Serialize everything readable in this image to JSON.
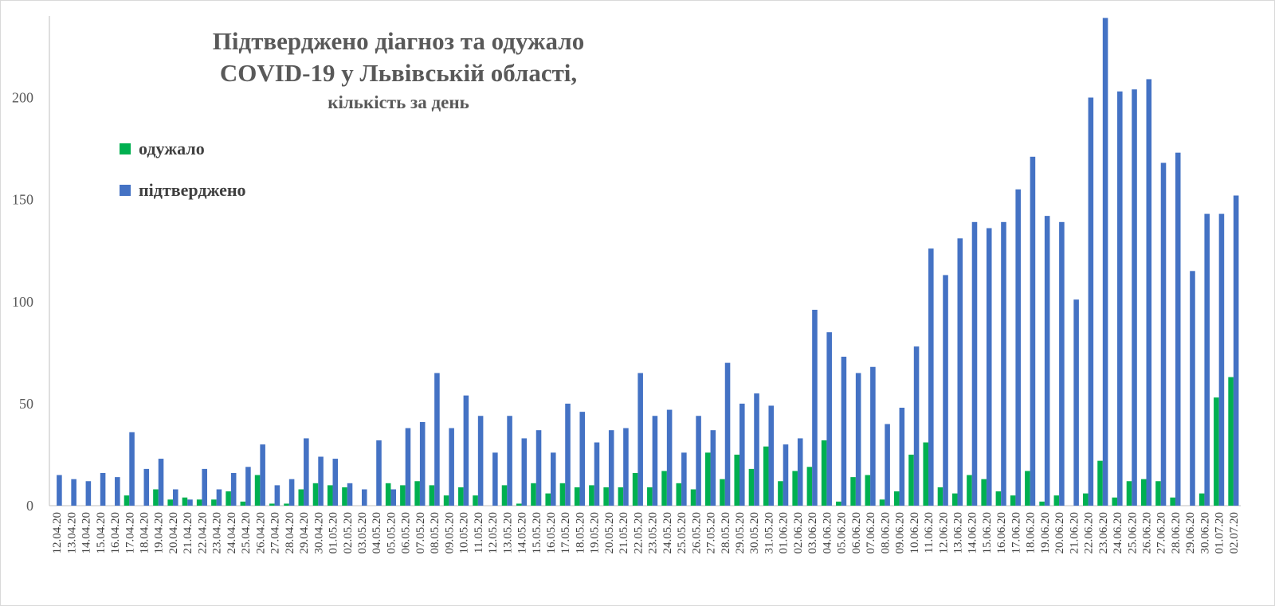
{
  "chart_data": {
    "type": "bar",
    "title_line1": "Підтверджено діагноз та одужало",
    "title_line2": "COVID-19 у Львівській області,",
    "subtitle": "кількість за день",
    "ylim": [
      0,
      240
    ],
    "yticks": [
      0,
      50,
      100,
      150,
      200
    ],
    "legend_position": "top-left",
    "categories": [
      "12.04.20",
      "13.04.20",
      "14.04.20",
      "15.04.20",
      "16.04.20",
      "17.04.20",
      "18.04.20",
      "19.04.20",
      "20.04.20",
      "21.04.20",
      "22.04.20",
      "23.04.20",
      "24.04.20",
      "25.04.20",
      "26.04.20",
      "27.04.20",
      "28.04.20",
      "29.04.20",
      "30.04.20",
      "01.05.20",
      "02.05.20",
      "03.05.20",
      "04.05.20",
      "05.05.20",
      "06.05.20",
      "07.05.20",
      "08.05.20",
      "09.05.20",
      "10.05.20",
      "11.05.20",
      "12.05.20",
      "13.05.20",
      "14.05.20",
      "15.05.20",
      "16.05.20",
      "17.05.20",
      "18.05.20",
      "19.05.20",
      "20.05.20",
      "21.05.20",
      "22.05.20",
      "23.05.20",
      "24.05.20",
      "25.05.20",
      "26.05.20",
      "27.05.20",
      "28.05.20",
      "29.05.20",
      "30.05.20",
      "31.05.20",
      "01.06.20",
      "02.06.20",
      "03.06.20",
      "04.06.20",
      "05.06.20",
      "06.06.20",
      "07.06.20",
      "08.06.20",
      "09.06.20",
      "10.06.20",
      "11.06.20",
      "12.06.20",
      "13.06.20",
      "14.06.20",
      "15.06.20",
      "16.06.20",
      "17.06.20",
      "18.06.20",
      "19.06.20",
      "20.06.20",
      "21.06.20",
      "22.06.20",
      "23.06.20",
      "24.06.20",
      "25.06.20",
      "26.06.20",
      "27.06.20",
      "28.06.20",
      "29.06.20",
      "30.06.20",
      "01.07.20",
      "02.07.20"
    ],
    "series": [
      {
        "name": "одужало",
        "color": "#00b050",
        "values": [
          0,
          0,
          0,
          0,
          0,
          5,
          0,
          8,
          3,
          4,
          3,
          3,
          7,
          2,
          15,
          1,
          1,
          8,
          11,
          10,
          9,
          0,
          0,
          11,
          10,
          12,
          10,
          5,
          9,
          5,
          0,
          10,
          1,
          11,
          6,
          11,
          9,
          10,
          9,
          9,
          16,
          9,
          17,
          11,
          8,
          26,
          13,
          25,
          18,
          29,
          12,
          17,
          19,
          32,
          2,
          14,
          15,
          3,
          7,
          25,
          31,
          9,
          6,
          15,
          13,
          7,
          5,
          17,
          2,
          5,
          0,
          6,
          22,
          4,
          12,
          13,
          12,
          4,
          0,
          6,
          53,
          63
        ]
      },
      {
        "name": "підтверджено",
        "color": "#4472c4",
        "values": [
          15,
          13,
          12,
          16,
          14,
          36,
          18,
          23,
          8,
          3,
          18,
          8,
          16,
          19,
          30,
          10,
          13,
          33,
          24,
          23,
          11,
          8,
          32,
          8,
          38,
          41,
          65,
          38,
          54,
          44,
          26,
          44,
          33,
          37,
          26,
          50,
          46,
          31,
          37,
          38,
          65,
          44,
          47,
          26,
          44,
          37,
          70,
          50,
          55,
          49,
          30,
          33,
          96,
          85,
          73,
          65,
          68,
          40,
          48,
          78,
          126,
          113,
          131,
          139,
          136,
          139,
          155,
          171,
          142,
          139,
          101,
          200,
          239,
          203,
          204,
          209,
          168,
          173,
          115,
          143,
          143,
          152
        ]
      }
    ]
  }
}
